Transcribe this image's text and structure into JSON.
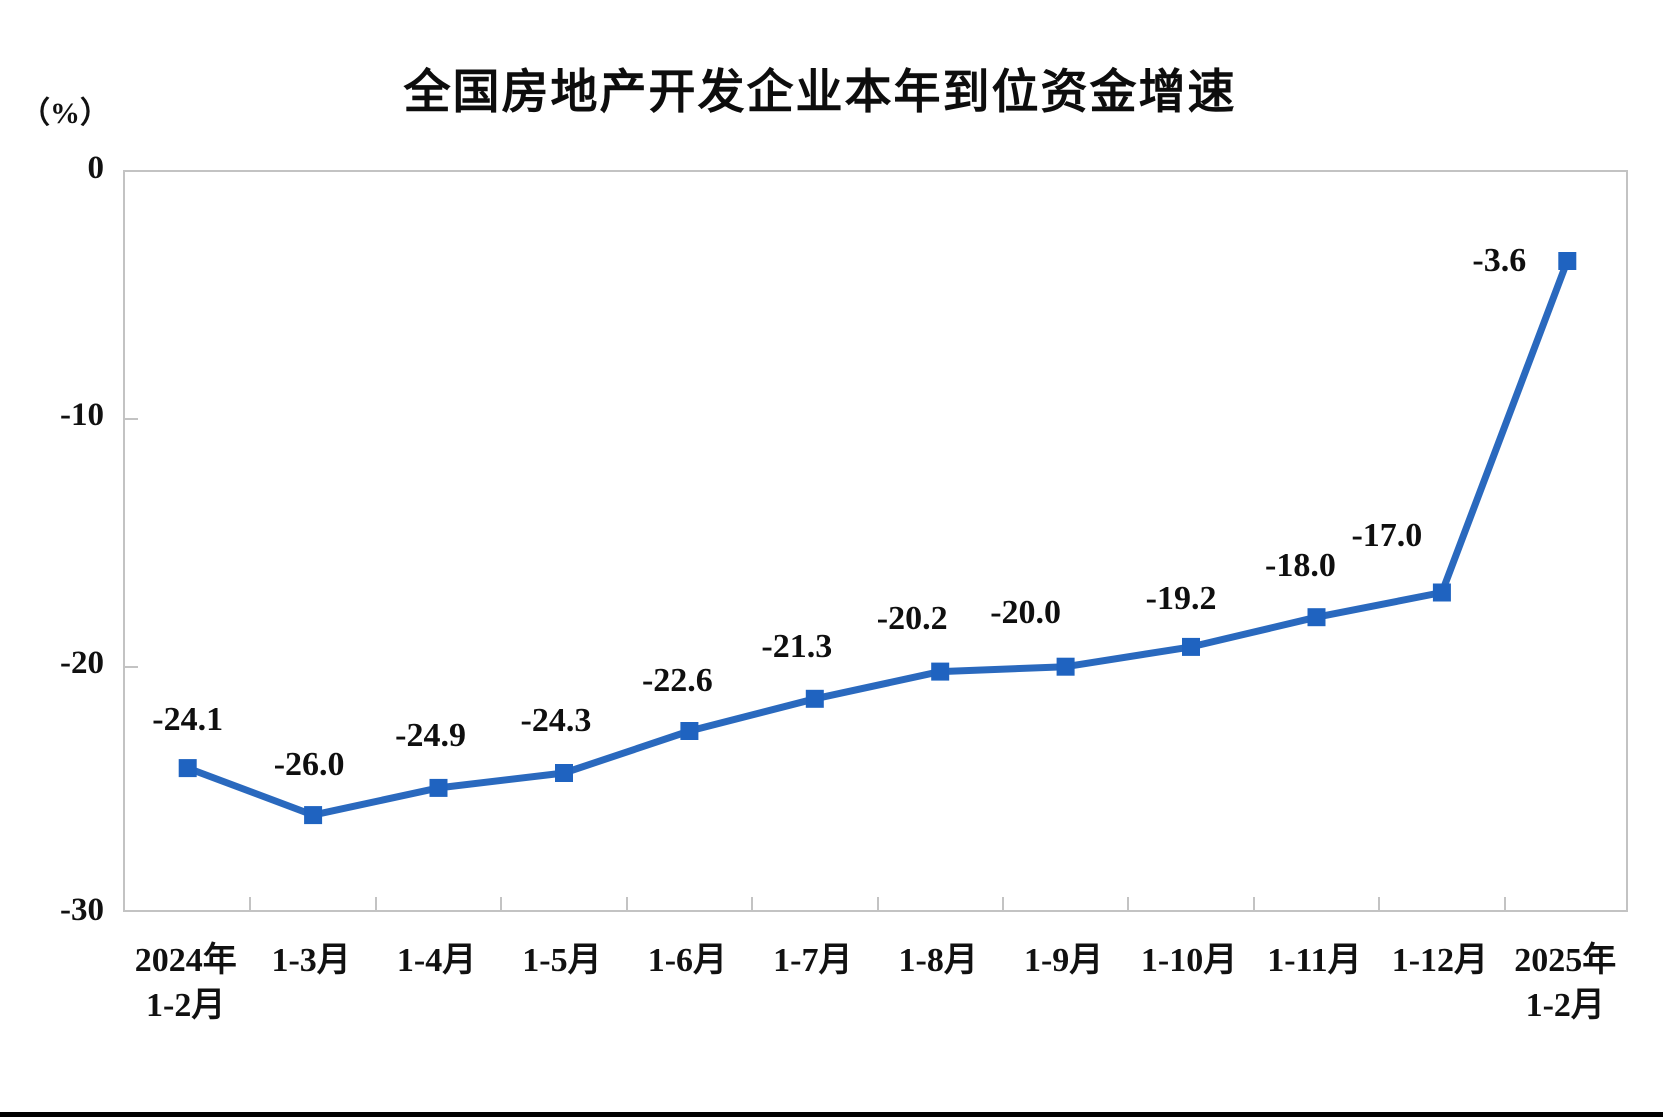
{
  "chart_data": {
    "type": "line",
    "title": "全国房地产开发企业本年到位资金增速",
    "unit_label": "（%）",
    "categories": [
      "2024年\n1-2月",
      "1-3月",
      "1-4月",
      "1-5月",
      "1-6月",
      "1-7月",
      "1-8月",
      "1-9月",
      "1-10月",
      "1-11月",
      "1-12月",
      "2025年\n1-2月"
    ],
    "values": [
      -24.1,
      -26.0,
      -24.9,
      -24.3,
      -22.6,
      -21.3,
      -20.2,
      -20.0,
      -19.2,
      -18.0,
      -17.0,
      -3.6
    ],
    "data_labels": [
      "-24.1",
      "-26.0",
      "-24.9",
      "-24.3",
      "-22.6",
      "-21.3",
      "-20.2",
      "-20.0",
      "-19.2",
      "-18.0",
      "-17.0",
      "-3.6"
    ],
    "xlabel": "",
    "ylabel": "（%）",
    "ylim": [
      -30,
      0
    ],
    "yticks": [
      0,
      -10,
      -20,
      -30
    ],
    "ytick_labels": [
      "0",
      "-10",
      "-20",
      "-30"
    ],
    "grid": false,
    "legend": "none",
    "marker_shape": "square",
    "colors": {
      "line": "#2a69be",
      "marker": "#1f63c0",
      "axis_border": "#c3c3c3",
      "text": "#111111"
    }
  }
}
